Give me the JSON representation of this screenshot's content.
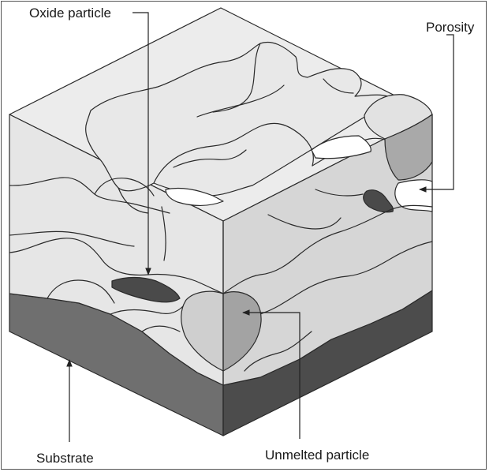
{
  "labels": {
    "oxide_particle": "Oxide particle",
    "porosity": "Porosity",
    "substrate": "Substrate",
    "unmelted_particle": "Unmelted particle"
  },
  "colors": {
    "splat_fill": "#e6e6e6",
    "splat_side_fill": "#d6d6d6",
    "unmelted_fill": "#b3b3b3",
    "substrate_front": "#6f6f6f",
    "substrate_side": "#4c4c4c",
    "oxide_fill": "#4a4a4a",
    "void_fill": "#ffffff",
    "line": "#2a2a2a"
  }
}
